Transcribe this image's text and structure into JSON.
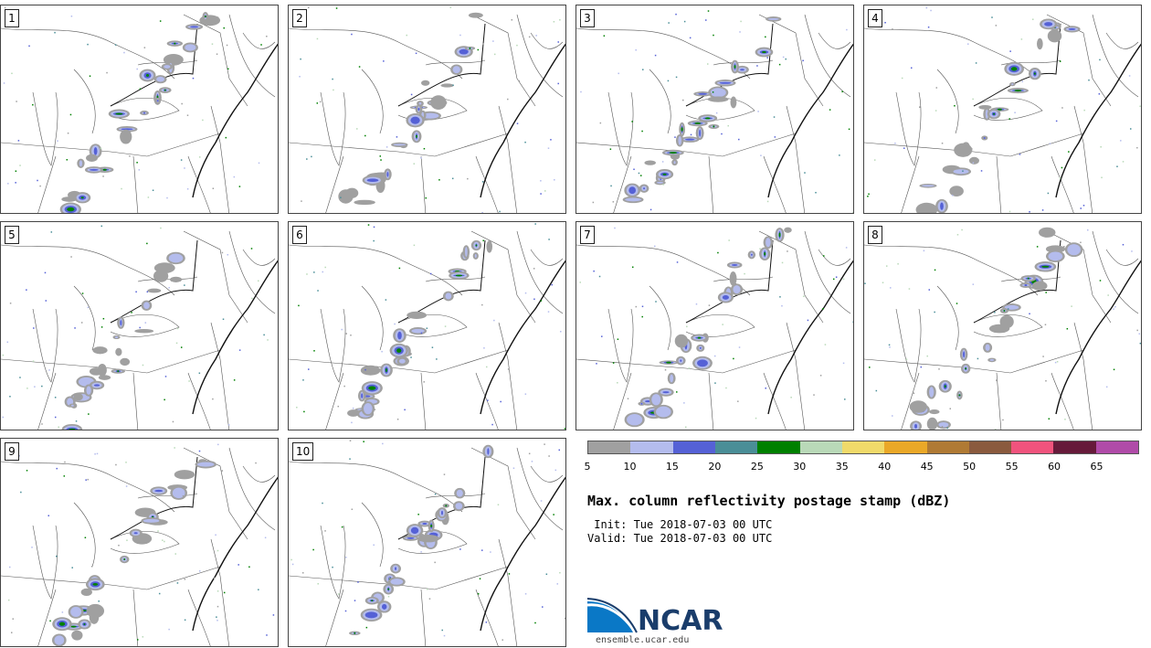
{
  "panels": [
    {
      "label": "1"
    },
    {
      "label": "2"
    },
    {
      "label": "3"
    },
    {
      "label": "4"
    },
    {
      "label": "5"
    },
    {
      "label": "6"
    },
    {
      "label": "7"
    },
    {
      "label": "8"
    },
    {
      "label": "9"
    },
    {
      "label": "10"
    }
  ],
  "colorbar": {
    "ticks": [
      "5",
      "10",
      "15",
      "20",
      "25",
      "30",
      "35",
      "40",
      "45",
      "50",
      "55",
      "60",
      "65"
    ],
    "colors": [
      "#a0a0a0",
      "#b4bced",
      "#5561d6",
      "#4a8e97",
      "#008000",
      "#b9d9b8",
      "#f0da6a",
      "#eaa828",
      "#b07a34",
      "#8a5a3e",
      "#f0537d",
      "#661a3a",
      "#b04ba8"
    ]
  },
  "title": "Max. column reflectivity postage stamp (dBZ)",
  "init_line": " Init: Tue 2018-07-03 00 UTC",
  "valid_line": "Valid: Tue 2018-07-03 00 UTC",
  "logo": {
    "text": "NCAR",
    "site": "ensemble.ucar.edu",
    "blue": "#0a78c6",
    "navy": "#1a3d6b"
  }
}
